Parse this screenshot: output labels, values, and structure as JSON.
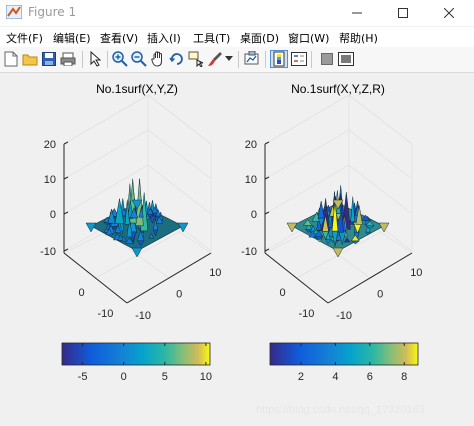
{
  "window": {
    "title": "Figure 1"
  },
  "menu": [
    "文件(F)",
    "编辑(E)",
    "查看(V)",
    "插入(I)",
    "工具(T)",
    "桌面(D)",
    "窗口(W)",
    "帮助(H)"
  ],
  "toolbar_icons": [
    "new-figure-icon",
    "open-file-icon",
    "save-icon",
    "print-icon",
    "edit-plot-icon",
    "zoom-in-icon",
    "zoom-out-icon",
    "pan-icon",
    "rotate-3d-icon",
    "data-cursor-icon",
    "brush-icon",
    "brush-dropdown-icon",
    "link-plot-icon",
    "insert-colorbar-icon",
    "insert-legend-icon",
    "hide-plot-tools-icon",
    "show-plot-tools-icon"
  ],
  "plots": [
    {
      "title": "No.1surf(X,Y,Z)",
      "z_ticks": [
        "20",
        "10",
        "0",
        "-10"
      ],
      "y_ticks": [
        "0",
        "-10"
      ],
      "x_ticks": [
        "10",
        "0",
        "-10"
      ],
      "colorbar_ticks": [
        "-5",
        "0",
        "5",
        "10"
      ],
      "colorbar_range": [
        -7.5,
        10.5
      ]
    },
    {
      "title": "No.1surf(X,Y,Z,R)",
      "z_ticks": [
        "20",
        "10",
        "0",
        "-10"
      ],
      "y_ticks": [
        "0",
        "-10"
      ],
      "x_ticks": [
        "10",
        "0",
        "-10"
      ],
      "colorbar_ticks": [
        "2",
        "4",
        "6",
        "8"
      ],
      "colorbar_range": [
        0.2,
        8.8
      ]
    }
  ],
  "watermark": "https://blog.csdn.net/qq_17320163",
  "colors": {
    "parula_start": "#352a87",
    "parula_mid": "#21b1a5",
    "parula_end": "#f9fb0e"
  }
}
